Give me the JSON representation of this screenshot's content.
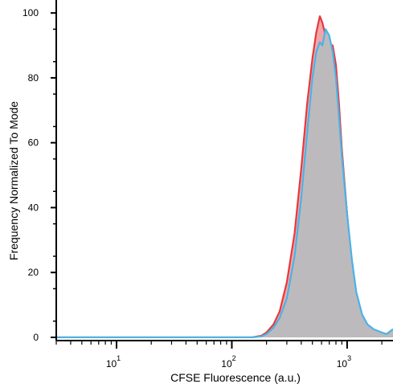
{
  "chart_data": {
    "type": "area",
    "title": "",
    "xlabel": "CFSE Fluorescence (a.u.)",
    "ylabel": "Frequency Normalized To Mode",
    "x_scale": "log",
    "xlim": [
      3,
      2500
    ],
    "ylim": [
      -1,
      104
    ],
    "y_ticks": [
      0,
      20,
      40,
      60,
      80,
      100
    ],
    "y_tick_labels": [
      "0",
      "20",
      "40",
      "60",
      "80",
      "100"
    ],
    "x_ticks": [
      10,
      100,
      1000
    ],
    "x_tick_bases": [
      "10",
      "10",
      "10"
    ],
    "x_tick_exponents": [
      "1",
      "2",
      "3"
    ],
    "grid": false,
    "legend": "none",
    "series": [
      {
        "color": "#e8383d",
        "fill": "#f0a6a8",
        "x": [
          3,
          150,
          180,
          200,
          230,
          260,
          300,
          350,
          400,
          450,
          500,
          540,
          580,
          610,
          650,
          700,
          750,
          800,
          850,
          900,
          1000,
          1100,
          1200,
          1350,
          1500,
          1700,
          2000,
          2200,
          2500
        ],
        "values": [
          0,
          0,
          0.5,
          1.5,
          4,
          8,
          17,
          32,
          52,
          72,
          86,
          94,
          99,
          97,
          93,
          90,
          90,
          84,
          72,
          58,
          38,
          22,
          12,
          6,
          3.5,
          2,
          1,
          1,
          2.5
        ]
      },
      {
        "color": "#4ab3e6",
        "fill": "#bdbabd",
        "x": [
          3,
          150,
          180,
          200,
          230,
          260,
          300,
          350,
          400,
          450,
          500,
          540,
          580,
          610,
          650,
          700,
          750,
          800,
          850,
          900,
          1000,
          1100,
          1200,
          1350,
          1500,
          1700,
          2000,
          2200,
          2500
        ],
        "values": [
          0,
          0,
          0.3,
          1,
          3,
          6,
          12,
          25,
          43,
          63,
          80,
          88,
          91,
          90,
          95,
          93,
          88,
          80,
          68,
          56,
          38,
          24,
          14,
          7,
          4,
          2.5,
          1.5,
          1,
          2.5
        ]
      }
    ]
  }
}
